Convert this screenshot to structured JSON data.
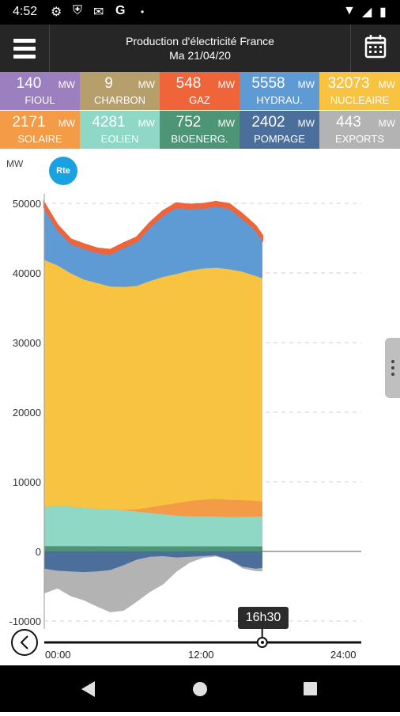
{
  "status": {
    "time": "4:52"
  },
  "header": {
    "title_line1": "Production d'électricité France",
    "title_line2": "Ma 21/04/20"
  },
  "tiles": [
    {
      "value": "140",
      "unit": "MW",
      "label": "FIOUL",
      "color": "#9b7fbe"
    },
    {
      "value": "9",
      "unit": "MW",
      "label": "CHARBON",
      "color": "#b69f6b"
    },
    {
      "value": "548",
      "unit": "MW",
      "label": "GAZ",
      "color": "#f0643a"
    },
    {
      "value": "5558",
      "unit": "MW",
      "label": "HYDRAU.",
      "color": "#5e9ad4"
    },
    {
      "value": "32073",
      "unit": "MW",
      "label": "NUCLEAIRE",
      "color": "#f8c340"
    },
    {
      "value": "2171",
      "unit": "MW",
      "label": "SOLAIRE",
      "color": "#f49b47"
    },
    {
      "value": "4281",
      "unit": "MW",
      "label": "EOLIEN",
      "color": "#8fd8c6"
    },
    {
      "value": "752",
      "unit": "MW",
      "label": "BIOENERG.",
      "color": "#4e9477"
    },
    {
      "value": "2402",
      "unit": "MW",
      "label": "POMPAGE",
      "color": "#4b6f9a"
    },
    {
      "value": "443",
      "unit": "MW",
      "label": "EXPORTS",
      "color": "#b3b3b3"
    }
  ],
  "chart": {
    "unit_label": "MW",
    "logo_text": "Rte"
  },
  "timeline": {
    "start": "00:00",
    "mid": "12:00",
    "end": "24:00",
    "cursor_label": "16h30"
  },
  "chart_data": {
    "type": "area",
    "ylabel": "MW",
    "ylim": [
      -10000,
      52000
    ],
    "yticks": [
      -10000,
      0,
      10000,
      20000,
      30000,
      40000,
      50000
    ],
    "x_hours": [
      0,
      1,
      2,
      3,
      4,
      5,
      6,
      7,
      8,
      9,
      10,
      11,
      12,
      13,
      14,
      15,
      16,
      16.5
    ],
    "series": [
      {
        "name": "BIOENERG.",
        "color": "#4e9477",
        "values": [
          800,
          800,
          790,
          780,
          780,
          770,
          770,
          760,
          760,
          760,
          760,
          760,
          760,
          760,
          760,
          750,
          750,
          752
        ]
      },
      {
        "name": "EOLIEN",
        "color": "#8fd8c6",
        "values": [
          5600,
          5800,
          5700,
          5500,
          5400,
          5300,
          5200,
          5000,
          4800,
          4600,
          4400,
          4300,
          4300,
          4300,
          4200,
          4250,
          4300,
          4281
        ]
      },
      {
        "name": "SOLAIRE",
        "color": "#f49b47",
        "values": [
          0,
          0,
          0,
          0,
          0,
          0,
          50,
          300,
          800,
          1300,
          1800,
          2200,
          2400,
          2500,
          2500,
          2400,
          2250,
          2171
        ]
      },
      {
        "name": "NUCLEAIRE",
        "color": "#f8c340",
        "values": [
          35500,
          34500,
          33500,
          32800,
          32400,
          32000,
          32000,
          32100,
          32500,
          32800,
          32900,
          33100,
          33200,
          33200,
          33100,
          32800,
          32300,
          32073
        ]
      },
      {
        "name": "HYDRAU.",
        "color": "#5e9ad4",
        "values": [
          7500,
          5200,
          4300,
          4500,
          4400,
          4700,
          5700,
          6400,
          7800,
          8900,
          9600,
          8900,
          8700,
          8900,
          8800,
          7700,
          6600,
          5558
        ]
      },
      {
        "name": "GAZ",
        "color": "#f0643a",
        "values": [
          600,
          560,
          540,
          540,
          540,
          540,
          540,
          540,
          540,
          550,
          550,
          550,
          550,
          550,
          550,
          550,
          550,
          548
        ]
      }
    ],
    "negative_series": [
      {
        "name": "POMPAGE",
        "color": "#4b6f9a",
        "values": [
          -2500,
          -2800,
          -2900,
          -3000,
          -2900,
          -2700,
          -2000,
          -1200,
          -800,
          -700,
          -900,
          -800,
          -700,
          -600,
          -1200,
          -2200,
          -2500,
          -2402
        ]
      },
      {
        "name": "EXPORTS",
        "color": "#b3b3b3",
        "values": [
          -3500,
          -2500,
          -3500,
          -4000,
          -5000,
          -6000,
          -6500,
          -6000,
          -5000,
          -4000,
          -2000,
          -800,
          -200,
          -100,
          0,
          -200,
          -300,
          -443
        ]
      }
    ]
  }
}
